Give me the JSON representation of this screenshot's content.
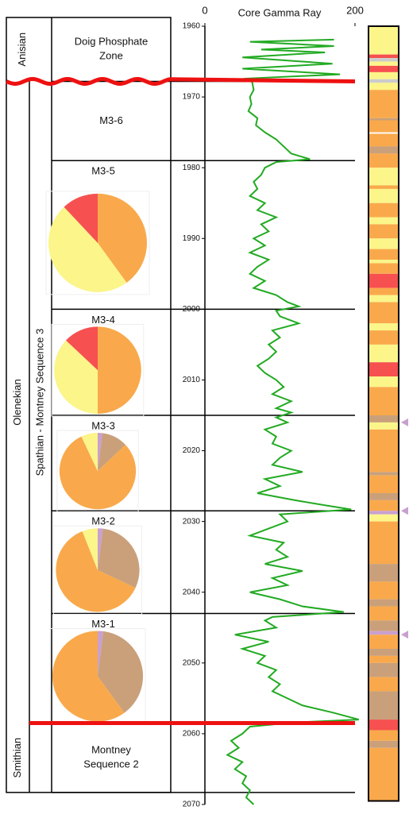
{
  "depth_axis": {
    "ylim": [
      1960,
      2070
    ],
    "yticks": [
      1960,
      1970,
      1980,
      1990,
      2000,
      2010,
      2020,
      2030,
      2040,
      2050,
      2060,
      2070
    ]
  },
  "gamma_ray": {
    "title": "Core Gamma Ray",
    "xlim": [
      0,
      200
    ],
    "xticks": [
      0,
      200
    ],
    "color": "#22aa22",
    "depth": [
      1961.9,
      1962.2,
      1962.8,
      1963.3,
      1963.7,
      1964.4,
      1965.3,
      1966.0,
      1966.8,
      1967.4,
      1967.9,
      1969,
      1970,
      1971,
      1972,
      1973,
      1974,
      1975,
      1976,
      1977,
      1978,
      1978.8,
      1979.2,
      1980,
      1981,
      1982,
      1983,
      1984,
      1985,
      1986,
      1987,
      1988,
      1989,
      1990,
      1991,
      1992,
      1993,
      1994,
      1995,
      1996,
      1997,
      1998,
      1999,
      1999.6,
      2000.2,
      2001,
      2002,
      2003,
      2004,
      2005,
      2006,
      2007,
      2008,
      2009,
      2010,
      2011,
      2012,
      2013,
      2014,
      2014.6,
      2015.3,
      2016,
      2017,
      2018,
      2019,
      2020,
      2021,
      2022,
      2023,
      2024,
      2025,
      2026,
      2027,
      2027.8,
      2028.3,
      2029,
      2030,
      2031,
      2032,
      2033,
      2034,
      2035,
      2036,
      2037,
      2038,
      2039,
      2040,
      2041,
      2042,
      2042.8,
      2043.5,
      2044,
      2045,
      2046,
      2047,
      2048,
      2049,
      2050,
      2051,
      2052,
      2053,
      2054,
      2055,
      2056,
      2057,
      2058,
      2058.4,
      2059,
      2060,
      2061,
      2062,
      2063,
      2064,
      2065,
      2066,
      2067,
      2068,
      2069,
      2070
    ],
    "values": [
      172,
      60,
      172,
      75,
      160,
      50,
      170,
      50,
      180,
      55,
      63,
      65,
      60,
      62,
      58,
      70,
      68,
      80,
      95,
      105,
      115,
      140,
      95,
      80,
      75,
      65,
      70,
      60,
      80,
      70,
      95,
      75,
      85,
      65,
      80,
      60,
      85,
      70,
      60,
      80,
      65,
      95,
      110,
      125,
      95,
      100,
      125,
      90,
      100,
      85,
      95,
      85,
      70,
      80,
      95,
      105,
      90,
      115,
      95,
      115,
      95,
      110,
      80,
      95,
      90,
      115,
      100,
      90,
      130,
      80,
      100,
      70,
      120,
      165,
      195,
      100,
      110,
      85,
      60,
      105,
      95,
      110,
      80,
      130,
      90,
      110,
      60,
      100,
      130,
      185,
      90,
      80,
      95,
      40,
      85,
      50,
      80,
      70,
      95,
      85,
      100,
      90,
      110,
      130,
      170,
      205,
      120,
      60,
      50,
      35,
      45,
      30,
      50,
      40,
      55,
      50,
      60,
      55,
      65
    ]
  },
  "red_boundaries": [
    1967.8,
    2058.5
  ],
  "stages": [
    {
      "label": "Anisian",
      "base": 1967.8
    },
    {
      "label": "Olenekian",
      "base": 2058.5
    },
    {
      "label": "Smithian",
      "base": 2068.3
    }
  ],
  "sequence": {
    "label": "Spathian - Montney Sequence 3",
    "top": 1967.8,
    "base": 2058.5
  },
  "units": [
    {
      "label": [
        "Doig Phosphate",
        "Zone"
      ],
      "base": 1967.8
    },
    {
      "label": [
        "M3-6"
      ],
      "base": 1979
    },
    {
      "label": [
        "M3-5"
      ],
      "base": 2000,
      "pie": {
        "values": [
          40,
          48,
          12
        ],
        "colors": [
          "#f9a94b",
          "#fbf58a",
          "#f65050"
        ]
      }
    },
    {
      "label": [
        "M3-4"
      ],
      "base": 2015,
      "pie": {
        "values": [
          50,
          37,
          13
        ],
        "colors": [
          "#f9a94b",
          "#fbf58a",
          "#f65050"
        ]
      }
    },
    {
      "label": [
        "M3-3"
      ],
      "base": 2028.5,
      "pie": {
        "values": [
          2,
          11,
          80,
          7
        ],
        "colors": [
          "#c9a0d0",
          "#c9a07a",
          "#f9a94b",
          "#fbf58a"
        ]
      }
    },
    {
      "label": [
        "M3-2"
      ],
      "base": 2043,
      "pie": {
        "values": [
          2,
          30,
          62,
          6
        ],
        "colors": [
          "#c9a0d0",
          "#c9a07a",
          "#f9a94b",
          "#fbf58a"
        ]
      }
    },
    {
      "label": [
        "M3-1"
      ],
      "base": 2058.5,
      "pie": {
        "values": [
          2,
          38,
          60
        ],
        "colors": [
          "#c9a0d0",
          "#c9a07a",
          "#f9a94b"
        ]
      }
    },
    {
      "label": [
        "Montney",
        "Sequence 2"
      ],
      "base": 2068.3
    }
  ],
  "facies": [
    {
      "top": 1960,
      "base": 1964,
      "color": "#fbf58a"
    },
    {
      "top": 1964,
      "base": 1964.5,
      "color": "#f65050"
    },
    {
      "top": 1964.5,
      "base": 1965,
      "color": "#cccccc"
    },
    {
      "top": 1965,
      "base": 1965.6,
      "color": "#fbf58a"
    },
    {
      "top": 1965.6,
      "base": 1966.5,
      "color": "#f65050"
    },
    {
      "top": 1966.5,
      "base": 1967.5,
      "color": "#fbf58a"
    },
    {
      "top": 1967.5,
      "base": 1968,
      "color": "#cccccc"
    },
    {
      "top": 1968,
      "base": 1969,
      "color": "#fbf58a"
    },
    {
      "top": 1969,
      "base": 1973,
      "color": "#f9a94b"
    },
    {
      "top": 1973,
      "base": 1973.3,
      "color": "#c9a07a"
    },
    {
      "top": 1973.3,
      "base": 1975,
      "color": "#f9a94b"
    },
    {
      "top": 1975,
      "base": 1975.2,
      "color": "#ffffff"
    },
    {
      "top": 1975.2,
      "base": 1977,
      "color": "#f9a94b"
    },
    {
      "top": 1977,
      "base": 1978,
      "color": "#c9a07a"
    },
    {
      "top": 1978,
      "base": 1980,
      "color": "#f9a94b"
    },
    {
      "top": 1980,
      "base": 1982.5,
      "color": "#fbf58a"
    },
    {
      "top": 1982.5,
      "base": 1983,
      "color": "#f9a94b"
    },
    {
      "top": 1983,
      "base": 1985,
      "color": "#fbf58a"
    },
    {
      "top": 1985,
      "base": 1987,
      "color": "#f9a94b"
    },
    {
      "top": 1987,
      "base": 1988,
      "color": "#fbf58a"
    },
    {
      "top": 1988,
      "base": 1990,
      "color": "#f9a94b"
    },
    {
      "top": 1990,
      "base": 1991.5,
      "color": "#fbf58a"
    },
    {
      "top": 1991.5,
      "base": 1993,
      "color": "#f9a94b"
    },
    {
      "top": 1993,
      "base": 1993.5,
      "color": "#fbf58a"
    },
    {
      "top": 1993.5,
      "base": 1995,
      "color": "#f9a94b"
    },
    {
      "top": 1995,
      "base": 1997,
      "color": "#f65050"
    },
    {
      "top": 1997,
      "base": 1998,
      "color": "#f9a94b"
    },
    {
      "top": 1998,
      "base": 1999,
      "color": "#fbf58a"
    },
    {
      "top": 1999,
      "base": 2002,
      "color": "#f9a94b"
    },
    {
      "top": 2002,
      "base": 2003,
      "color": "#fbf58a"
    },
    {
      "top": 2003,
      "base": 2005,
      "color": "#f9a94b"
    },
    {
      "top": 2005,
      "base": 2007.5,
      "color": "#fbf58a"
    },
    {
      "top": 2007.5,
      "base": 2009.5,
      "color": "#f65050"
    },
    {
      "top": 2009.5,
      "base": 2011,
      "color": "#fbf58a"
    },
    {
      "top": 2011,
      "base": 2015,
      "color": "#f9a94b"
    },
    {
      "top": 2015,
      "base": 2016,
      "color": "#c9a07a"
    },
    {
      "top": 2016,
      "base": 2017,
      "color": "#fbf58a"
    },
    {
      "top": 2017,
      "base": 2023,
      "color": "#f9a94b"
    },
    {
      "top": 2023,
      "base": 2023.5,
      "color": "#c9a07a"
    },
    {
      "top": 2023.5,
      "base": 2026,
      "color": "#f9a94b"
    },
    {
      "top": 2026,
      "base": 2027,
      "color": "#c9a07a"
    },
    {
      "top": 2027,
      "base": 2028.5,
      "color": "#f9a94b"
    },
    {
      "top": 2028.5,
      "base": 2029,
      "color": "#c9a0d0"
    },
    {
      "top": 2029,
      "base": 2030,
      "color": "#fbf58a"
    },
    {
      "top": 2030,
      "base": 2036,
      "color": "#f9a94b"
    },
    {
      "top": 2036,
      "base": 2038.5,
      "color": "#c9a07a"
    },
    {
      "top": 2038.5,
      "base": 2041,
      "color": "#f9a94b"
    },
    {
      "top": 2041,
      "base": 2042,
      "color": "#c9a07a"
    },
    {
      "top": 2042,
      "base": 2044,
      "color": "#f9a94b"
    },
    {
      "top": 2044,
      "base": 2045.5,
      "color": "#c9a07a"
    },
    {
      "top": 2045.5,
      "base": 2046,
      "color": "#c9a0d0"
    },
    {
      "top": 2046,
      "base": 2048,
      "color": "#f9a94b"
    },
    {
      "top": 2048,
      "base": 2049,
      "color": "#c9a07a"
    },
    {
      "top": 2049,
      "base": 2050,
      "color": "#f9a94b"
    },
    {
      "top": 2050,
      "base": 2052,
      "color": "#c9a07a"
    },
    {
      "top": 2052,
      "base": 2054,
      "color": "#f9a94b"
    },
    {
      "top": 2054,
      "base": 2058,
      "color": "#c9a07a"
    },
    {
      "top": 2058,
      "base": 2059.5,
      "color": "#f65050"
    },
    {
      "top": 2059.5,
      "base": 2061,
      "color": "#f9a94b"
    },
    {
      "top": 2061,
      "base": 2062,
      "color": "#c9a07a"
    },
    {
      "top": 2062,
      "base": 2069.5,
      "color": "#f9a94b"
    }
  ],
  "markers": [
    2016,
    2028.5,
    2046
  ]
}
